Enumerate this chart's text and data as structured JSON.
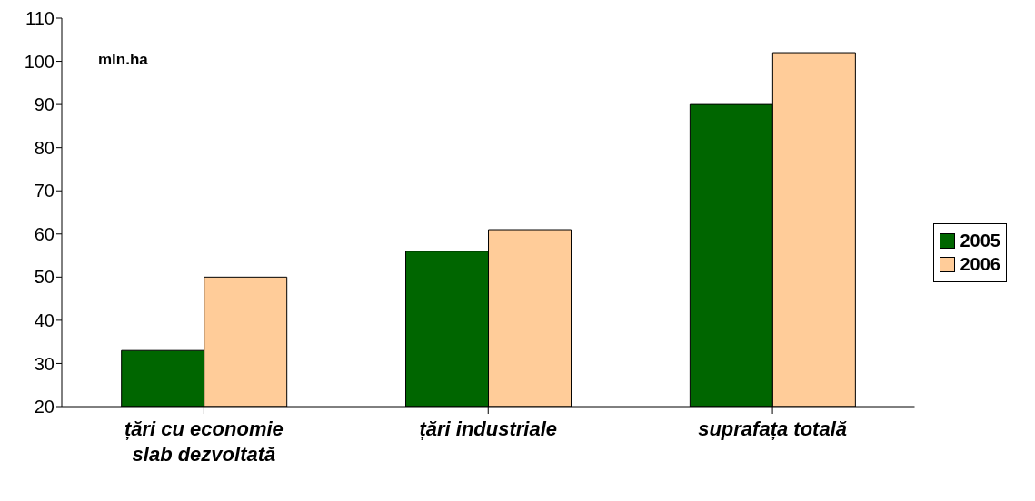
{
  "chart_data": {
    "type": "bar",
    "categories": [
      "țări cu economie slab dezvoltată",
      "țări industriale",
      "suprafața totală"
    ],
    "series": [
      {
        "name": "2005",
        "color": "#006600",
        "values": [
          33,
          56,
          90
        ]
      },
      {
        "name": "2006",
        "color": "#ffcc99",
        "values": [
          50,
          61,
          102
        ]
      }
    ],
    "ylim": [
      20,
      110
    ],
    "yticks": [
      20,
      30,
      40,
      50,
      60,
      70,
      80,
      90,
      100,
      110
    ],
    "grid": false,
    "legend": "right",
    "annotations": [
      "mln.ha"
    ]
  }
}
